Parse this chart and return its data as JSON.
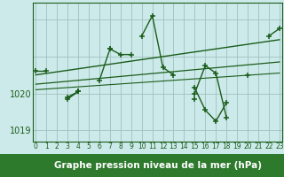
{
  "xlabel": "Graphe pression niveau de la mer (hPa)",
  "background_color": "#cdeaea",
  "line_color": "#1a5c1a",
  "grid_color": "#a0c0c0",
  "x_values": [
    0,
    1,
    2,
    3,
    4,
    5,
    6,
    7,
    8,
    9,
    10,
    11,
    12,
    13,
    14,
    15,
    16,
    17,
    18,
    19,
    20,
    21,
    22,
    23
  ],
  "series1": [
    1020.6,
    1020.6,
    null,
    1019.85,
    1020.05,
    null,
    null,
    1021.2,
    null,
    null,
    1021.55,
    1022.1,
    1020.7,
    1020.5,
    null,
    1019.85,
    null,
    null,
    null,
    null,
    1020.5,
    null,
    1021.55,
    1021.75
  ],
  "series2": [
    null,
    null,
    null,
    1019.9,
    1020.05,
    null,
    1020.35,
    1021.2,
    1021.05,
    1021.05,
    null,
    null,
    null,
    null,
    null,
    1020.15,
    1019.55,
    1019.25,
    1019.75,
    null,
    null,
    null,
    null,
    null
  ],
  "series3": [
    null,
    null,
    null,
    null,
    1020.05,
    null,
    null,
    null,
    null,
    null,
    null,
    null,
    null,
    null,
    null,
    1020.0,
    1020.75,
    1020.55,
    1019.35,
    null,
    null,
    null,
    null,
    null
  ],
  "trend1_y0": 1020.5,
  "trend1_y1": 1021.45,
  "trend2_y0": 1020.25,
  "trend2_y1": 1020.85,
  "trend3_y0": 1020.1,
  "trend3_y1": 1020.55,
  "ylim_min": 1018.7,
  "ylim_max": 1022.45,
  "y_label_1019_val": 1019.0,
  "y_label_1020_val": 1020.0,
  "xlim_min": -0.3,
  "xlim_max": 23.3,
  "xticks": [
    0,
    1,
    2,
    3,
    4,
    5,
    6,
    7,
    8,
    9,
    10,
    11,
    12,
    13,
    14,
    15,
    16,
    17,
    18,
    19,
    20,
    21,
    22,
    23
  ],
  "xlabel_color": "#1a5c1a",
  "xlabel_fontsize": 7.5,
  "tick_fontsize": 5.5,
  "ytick_fontsize": 7
}
